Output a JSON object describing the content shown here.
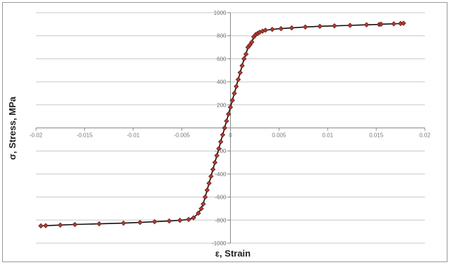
{
  "chart_data": {
    "type": "scatter",
    "xlabel": "ε, Strain",
    "ylabel": "σ, Stress, MPa",
    "xlim": [
      -0.02,
      0.02
    ],
    "ylim": [
      -1000,
      1000
    ],
    "x_ticks": [
      -0.02,
      -0.015,
      -0.01,
      -0.005,
      0,
      0.005,
      0.01,
      0.015,
      0.02
    ],
    "y_ticks": [
      -1000,
      -800,
      -600,
      -400,
      -200,
      0,
      200,
      400,
      600,
      800,
      1000
    ],
    "x_tick_labels": [
      "-0.02",
      "-0.015",
      "-0.01",
      "-0.005",
      "0",
      "0.005",
      "0.01",
      "0.015",
      "0.02"
    ],
    "y_tick_labels": [
      "-1000",
      "-800",
      "-600",
      "-400",
      "-200",
      "0",
      "200",
      "400",
      "600",
      "800",
      "1000"
    ],
    "grid": "horizontal",
    "line_color": "#111111",
    "marker_fill": "#b33a2e",
    "marker_stroke": "#5a1a14",
    "series": [
      {
        "x": [
          -0.0195,
          -0.019,
          -0.0175,
          -0.016,
          -0.0135,
          -0.011,
          -0.0093,
          -0.0078,
          -0.0063,
          -0.0052,
          -0.0043,
          -0.0038,
          -0.0033,
          -0.003,
          -0.0028,
          -0.0026,
          -0.0024,
          -0.0022,
          -0.002,
          -0.0018,
          -0.0016,
          -0.0014,
          -0.0012,
          -0.001,
          -0.0008,
          -0.0006,
          -0.0004,
          -0.0002,
          0,
          0.0002,
          0.0004,
          0.0006,
          0.0008,
          0.001,
          0.0012,
          0.0014,
          0.0016,
          0.0018,
          0.002,
          0.0022,
          0.0024,
          0.0026,
          0.0028,
          0.003,
          0.0033,
          0.0036,
          0.0043,
          0.0052,
          0.0063,
          0.0077,
          0.0092,
          0.0107,
          0.0123,
          0.014,
          0.0153,
          0.0155,
          0.0168,
          0.0175,
          0.0178
        ],
        "y": [
          -850,
          -848,
          -843,
          -838,
          -832,
          -826,
          -820,
          -814,
          -808,
          -802,
          -794,
          -780,
          -740,
          -700,
          -660,
          -600,
          -540,
          -480,
          -420,
          -360,
          -300,
          -240,
          -180,
          -120,
          -60,
          0,
          60,
          120,
          180,
          240,
          300,
          360,
          420,
          480,
          540,
          600,
          640,
          700,
          720,
          745,
          790,
          810,
          820,
          830,
          840,
          848,
          855,
          862,
          868,
          876,
          882,
          886,
          890,
          895,
          898,
          900,
          903,
          906,
          908
        ]
      }
    ]
  }
}
